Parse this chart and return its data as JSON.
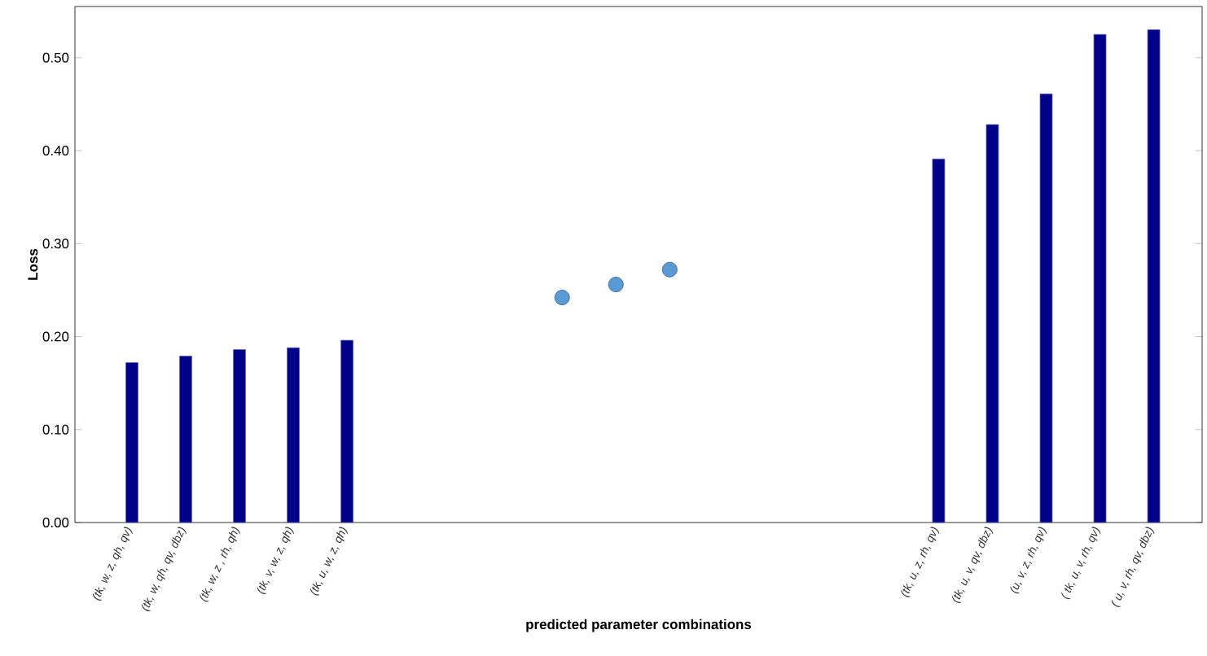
{
  "chart_data": {
    "type": "bar",
    "xlabel": "predicted parameter combinations",
    "ylabel": "Loss",
    "categories": [
      "(tk, w, z, qh, qv)",
      "(tk, w, qh, qv, dbz)",
      "(tk, w, z , rh, qh)",
      "(tk, v, w, z, qh)",
      "(tk, u, w, z, qh)",
      null,
      null,
      null,
      null,
      null,
      null,
      null,
      null,
      null,
      null,
      "(tk, u, z, rh, qv)",
      "(tk, u, v, qv, dbz)",
      "(u, v, z, rh, qv)",
      "( tk, u, v, rh, qv)",
      "( u, v, rh, qv, dbz)"
    ],
    "series": [
      {
        "color": "#000088",
        "values": [
          0.172,
          0.179,
          0.186,
          0.188,
          0.196,
          null,
          null,
          null,
          null,
          null,
          null,
          null,
          null,
          null,
          null,
          0.391,
          0.428,
          0.461,
          0.525,
          0.53
        ]
      },
      {
        "type": "scatter",
        "color": "#5b9bd5",
        "values": [
          null,
          null,
          null,
          null,
          null,
          null,
          null,
          null,
          0.242,
          0.256,
          0.272,
          null,
          null,
          null,
          null,
          null,
          null,
          null,
          null,
          null
        ]
      }
    ],
    "marker": "circle",
    "ylim": [
      0,
      0.555
    ],
    "yticks": [
      {
        "value": 0,
        "label": "0.00"
      },
      {
        "value": 0.1,
        "label": "0.10"
      },
      {
        "value": 0.2,
        "label": "0.20"
      },
      {
        "value": 0.3,
        "label": "0.30"
      },
      {
        "value": 0.4,
        "label": "0.40"
      },
      {
        "value": 0.5,
        "label": "0.50"
      }
    ]
  }
}
